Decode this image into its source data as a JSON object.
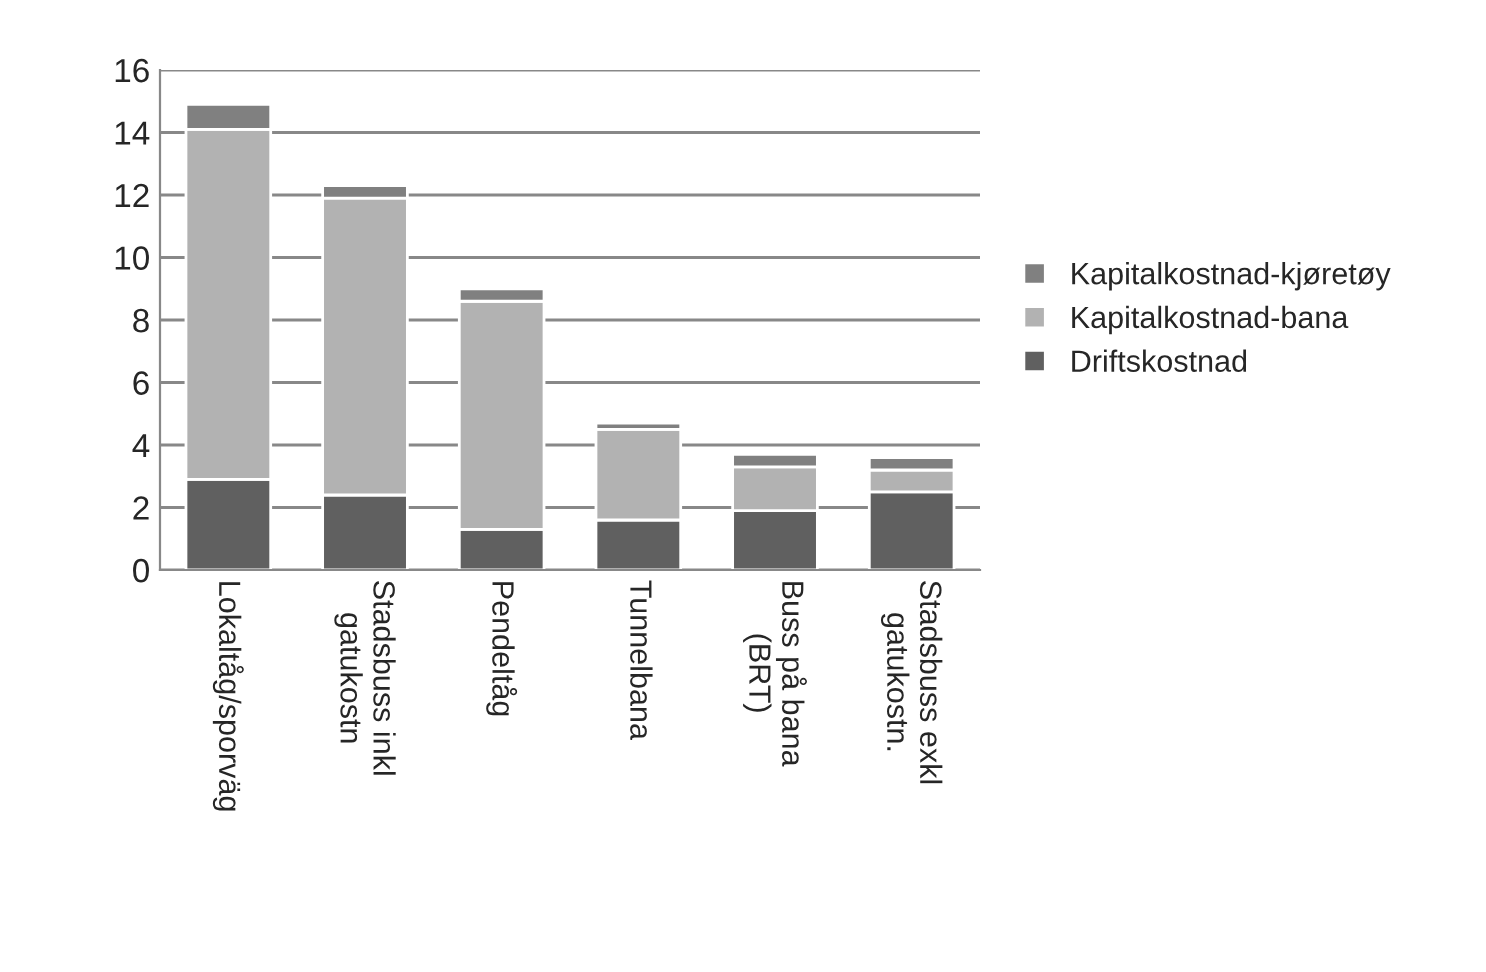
{
  "chart_data": {
    "type": "bar",
    "stacked": true,
    "categories": [
      "Lokaltåg/sporväg",
      "Stadsbuss inkl\ngatukostn",
      "Pendeltåg",
      "Tunnelbana",
      "Buss på bana\n(BRT)",
      "Stadsbuss exkl\ngatukostn."
    ],
    "series": [
      {
        "name": "Driftskostnad",
        "color": "#606060",
        "values": [
          2.9,
          2.4,
          1.3,
          1.6,
          1.9,
          2.5
        ]
      },
      {
        "name": "Kapitalkostnad-bana",
        "color": "#b2b2b2",
        "values": [
          11.2,
          9.5,
          7.3,
          2.9,
          1.4,
          0.7
        ]
      },
      {
        "name": "Kapitalkostnad-kjøretøy",
        "color": "#808080",
        "values": [
          0.8,
          0.4,
          0.4,
          0.2,
          0.4,
          0.4
        ]
      }
    ],
    "ylim": [
      0,
      16
    ],
    "yticks": [
      0,
      2,
      4,
      6,
      8,
      10,
      12,
      14,
      16
    ],
    "grid": "y",
    "legend": "right"
  }
}
